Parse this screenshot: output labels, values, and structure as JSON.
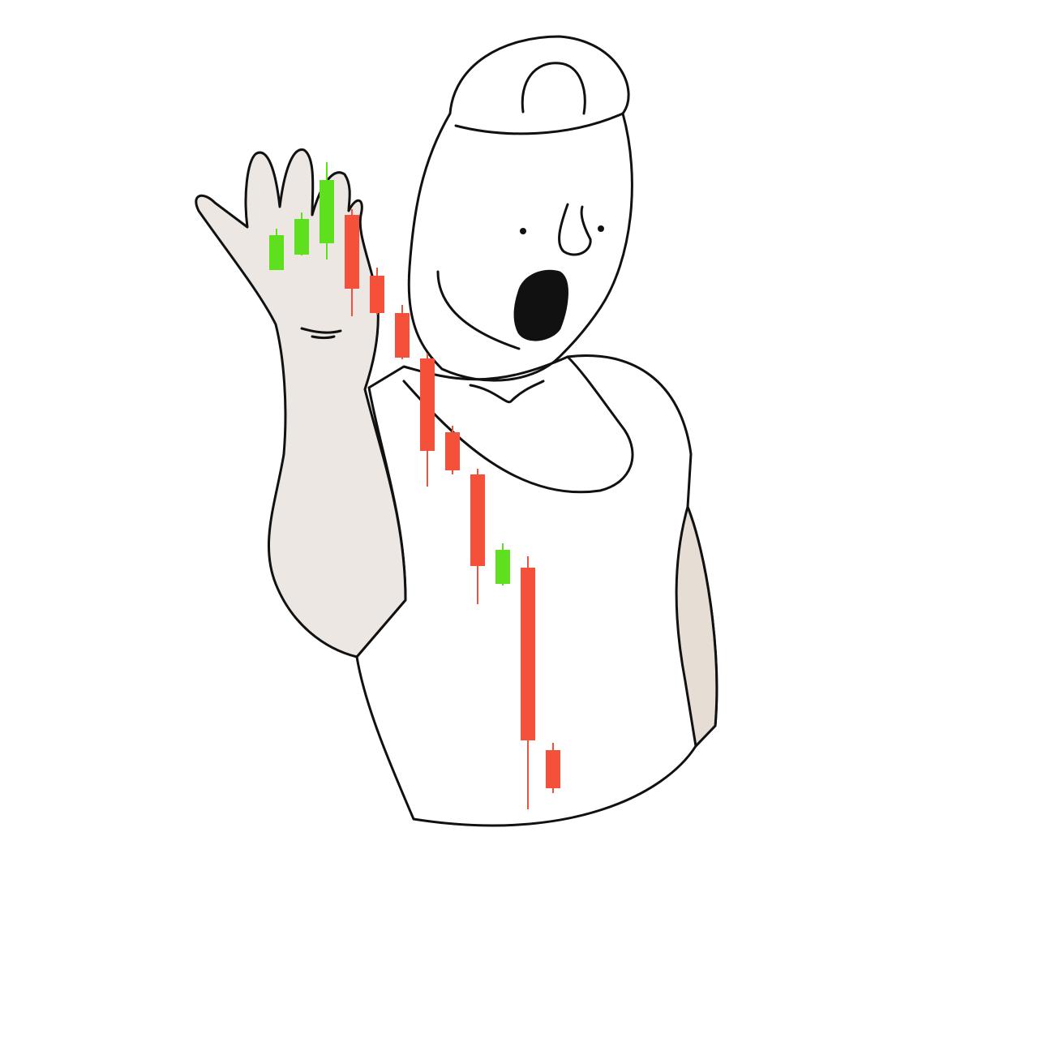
{
  "chart_data": {
    "type": "candlestick",
    "categories": [
      null,
      null,
      null,
      null,
      null,
      null,
      null,
      null,
      null,
      null,
      null,
      null
    ],
    "open": [
      947,
      966,
      980,
      1015,
      940,
      894,
      838,
      747,
      695,
      560,
      580,
      355
    ],
    "high": [
      998,
      1018,
      1080,
      1022,
      950,
      904,
      844,
      755,
      702,
      610,
      594,
      364
    ],
    "low": [
      947,
      965,
      960,
      890,
      892,
      837,
      680,
      695,
      535,
      558,
      282,
      302
    ],
    "close": [
      990,
      1010,
      1058,
      924,
      894,
      839,
      724,
      700,
      582,
      602,
      367,
      308
    ],
    "up_color": "#5ee01f",
    "down_color": "#f4503a",
    "ylim": [
      0,
      1280
    ]
  }
}
